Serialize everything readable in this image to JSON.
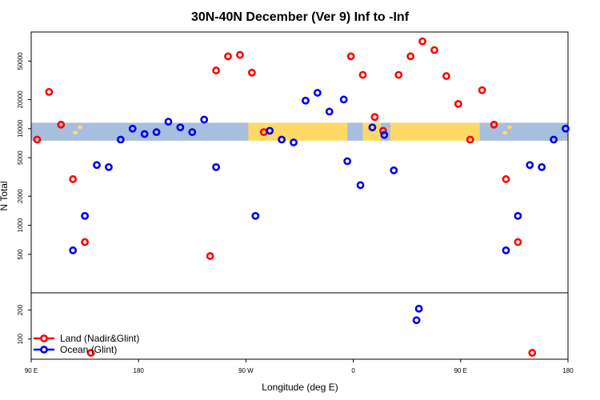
{
  "chart_data": {
    "type": "scatter",
    "title": "30N-40N December (Ver 9)   Inf to -Inf",
    "xlabel": "Longitude (deg E)",
    "ylabel": "N Total",
    "x_ticks": [
      {
        "lon": 90,
        "label": "90 E"
      },
      {
        "lon": 180,
        "label": "180"
      },
      {
        "lon": 270,
        "label": "90 W"
      },
      {
        "lon": 360,
        "label": "0"
      },
      {
        "lon": 450,
        "label": "90 E"
      },
      {
        "lon": 540,
        "label": "180"
      }
    ],
    "xlim": [
      90,
      540
    ],
    "upper_panel": {
      "scale": "log",
      "ylim": [
        200,
        100000
      ],
      "y_ticks": [
        {
          "value": 500,
          "label": "500"
        },
        {
          "value": 1000,
          "label": "1000"
        },
        {
          "value": 2000,
          "label": "2000"
        },
        {
          "value": 5000,
          "label": "5000"
        },
        {
          "value": 10000,
          "label": "10000"
        },
        {
          "value": 20000,
          "label": "20000"
        },
        {
          "value": 50000,
          "label": "50000"
        }
      ],
      "map_strip": {
        "y_top": 11500,
        "y_bottom": 7500,
        "land_color": "#ffd966",
        "ocean_color": "#a8bede"
      }
    },
    "lower_panel": {
      "scale": "linear",
      "ylim": [
        30,
        260
      ],
      "y_ticks": [
        {
          "value": 100,
          "label": "100"
        },
        {
          "value": 200,
          "label": "200"
        }
      ]
    },
    "series": [
      {
        "name": "Land (Nadir&Glint)",
        "color": "#ff0000",
        "points": [
          {
            "x": 95,
            "y": 7700
          },
          {
            "x": 105,
            "y": 24000
          },
          {
            "x": 115,
            "y": 11000
          },
          {
            "x": 125,
            "y": 3000
          },
          {
            "x": 135,
            "y": 670
          },
          {
            "x": 240,
            "y": 480
          },
          {
            "x": 245,
            "y": 40000
          },
          {
            "x": 255,
            "y": 56000
          },
          {
            "x": 265,
            "y": 58000
          },
          {
            "x": 275,
            "y": 38000
          },
          {
            "x": 285,
            "y": 9200
          },
          {
            "x": 358,
            "y": 56000
          },
          {
            "x": 368,
            "y": 36000
          },
          {
            "x": 378,
            "y": 13200
          },
          {
            "x": 385,
            "y": 9500
          },
          {
            "x": 398,
            "y": 36000
          },
          {
            "x": 408,
            "y": 56000
          },
          {
            "x": 418,
            "y": 80000
          },
          {
            "x": 428,
            "y": 65000
          },
          {
            "x": 438,
            "y": 35000
          },
          {
            "x": 448,
            "y": 18000
          },
          {
            "x": 458,
            "y": 7700
          },
          {
            "x": 468,
            "y": 25000
          },
          {
            "x": 478,
            "y": 11000
          },
          {
            "x": 488,
            "y": 3000
          },
          {
            "x": 498,
            "y": 670
          }
        ],
        "lower_points": [
          {
            "x": 140,
            "y": 52
          },
          {
            "x": 510,
            "y": 52
          }
        ]
      },
      {
        "name": "Ocean (Glint)",
        "color": "#0000ee",
        "points": [
          {
            "x": 125,
            "y": 550
          },
          {
            "x": 135,
            "y": 1250
          },
          {
            "x": 145,
            "y": 4200
          },
          {
            "x": 155,
            "y": 4000
          },
          {
            "x": 165,
            "y": 7700
          },
          {
            "x": 175,
            "y": 10000
          },
          {
            "x": 185,
            "y": 8800
          },
          {
            "x": 195,
            "y": 9200
          },
          {
            "x": 205,
            "y": 11800
          },
          {
            "x": 215,
            "y": 10300
          },
          {
            "x": 225,
            "y": 9200
          },
          {
            "x": 235,
            "y": 12400
          },
          {
            "x": 245,
            "y": 4000
          },
          {
            "x": 278,
            "y": 1250
          },
          {
            "x": 290,
            "y": 9500
          },
          {
            "x": 300,
            "y": 7700
          },
          {
            "x": 310,
            "y": 7200
          },
          {
            "x": 320,
            "y": 19500
          },
          {
            "x": 330,
            "y": 23500
          },
          {
            "x": 340,
            "y": 15000
          },
          {
            "x": 352,
            "y": 20000
          },
          {
            "x": 355,
            "y": 4600
          },
          {
            "x": 366,
            "y": 2600
          },
          {
            "x": 376,
            "y": 10300
          },
          {
            "x": 386,
            "y": 8600
          },
          {
            "x": 394,
            "y": 3700
          },
          {
            "x": 488,
            "y": 550
          },
          {
            "x": 498,
            "y": 1250
          },
          {
            "x": 508,
            "y": 4200
          },
          {
            "x": 518,
            "y": 4000
          },
          {
            "x": 528,
            "y": 7700
          },
          {
            "x": 538,
            "y": 10000
          }
        ],
        "lower_points": [
          {
            "x": 413,
            "y": 165
          },
          {
            "x": 415,
            "y": 205
          }
        ]
      }
    ],
    "legend": {
      "placement": "bottom-left"
    }
  }
}
